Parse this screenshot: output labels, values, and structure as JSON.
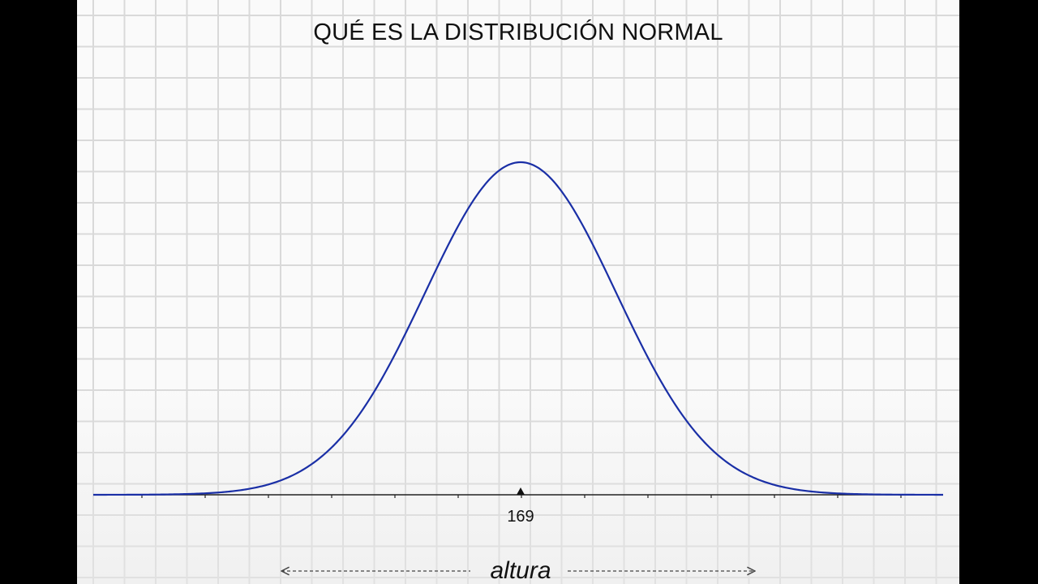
{
  "chart_data": {
    "type": "line",
    "title": "QUÉ ES LA DISTRIBUCIÓN NORMAL",
    "xlabel": "altura",
    "ylabel": "",
    "center_tick_label": "169",
    "mean": 169,
    "curve_color": "#1a2fa6",
    "axis_color": "#222222",
    "grid": true
  }
}
